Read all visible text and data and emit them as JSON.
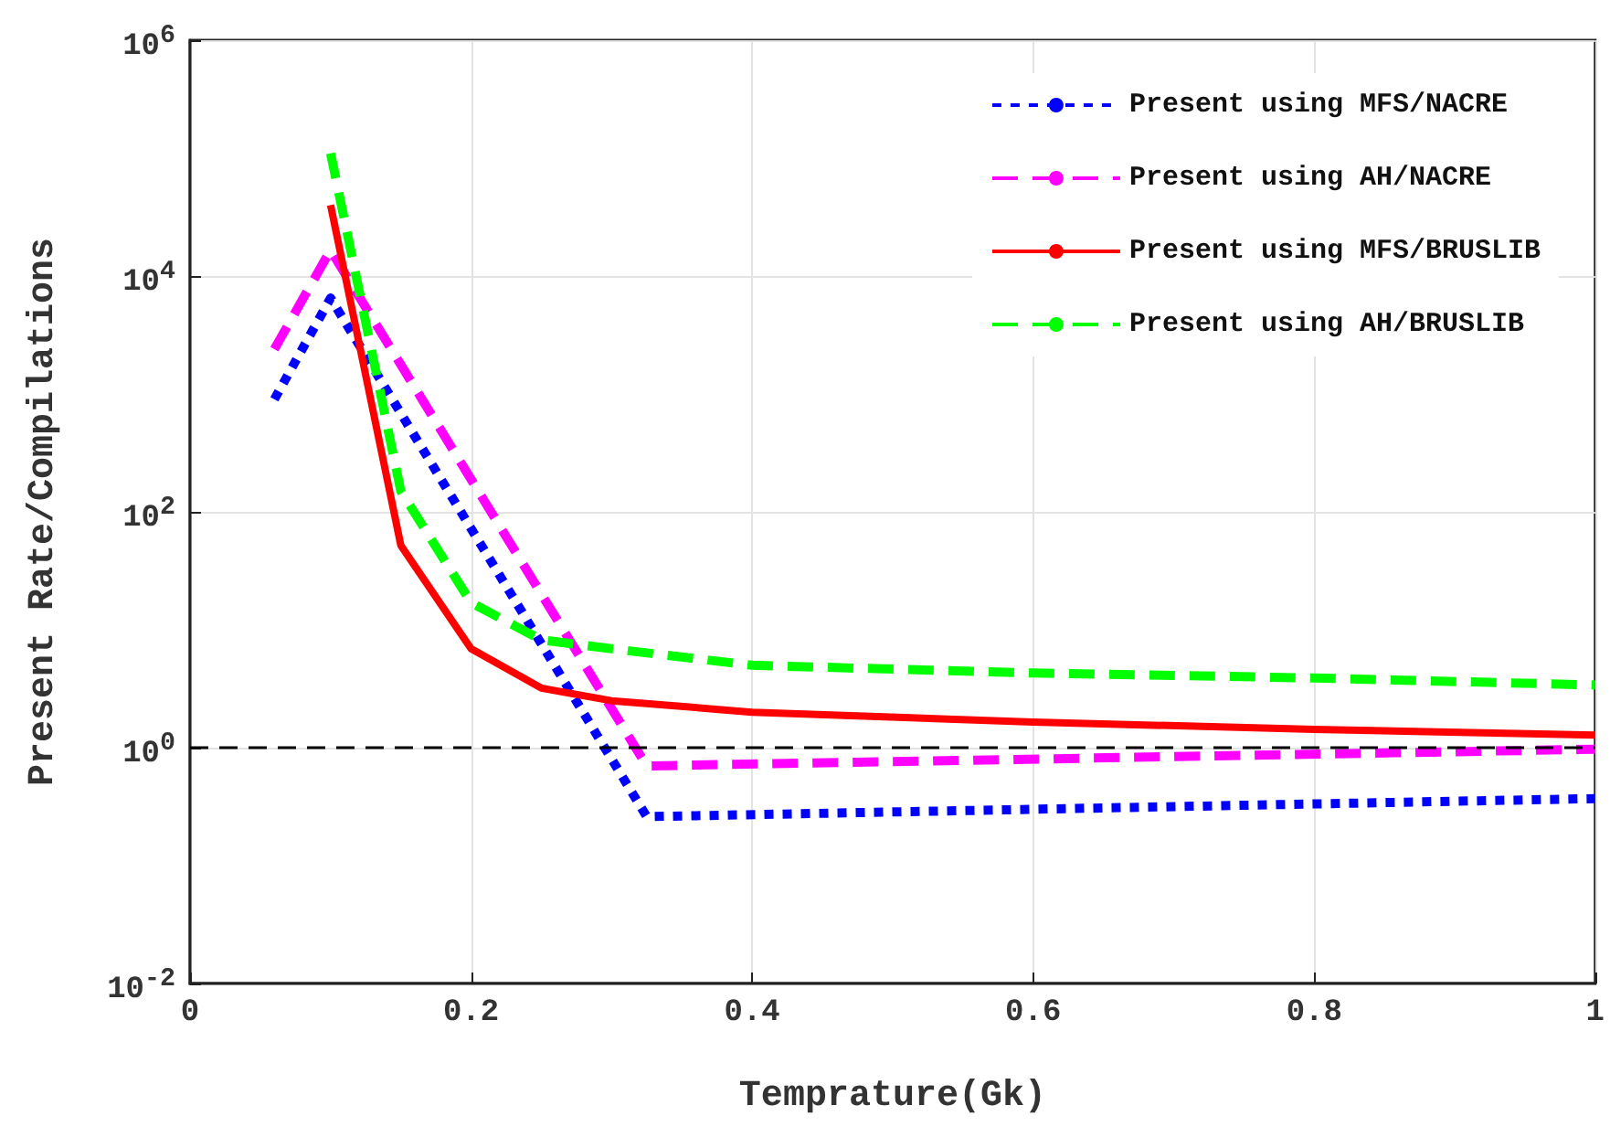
{
  "chart_data": {
    "type": "line",
    "xlabel": "Temprature(Gk)",
    "ylabel": "Present Rate/Compilations",
    "log": "y",
    "grid": true,
    "legend": "top right",
    "marker": "none",
    "xlim": [
      0,
      1
    ],
    "xticks": [
      0,
      0.2,
      0.4,
      0.6,
      0.8,
      1
    ],
    "ylim": [
      0.01,
      1000000
    ],
    "yticks": [
      {
        "value": 0.01,
        "label": "10$^{-2}$"
      },
      {
        "value": 1,
        "label": "10$^{0}$"
      },
      {
        "value": 100,
        "label": "10$^{2}$"
      },
      {
        "value": 10000,
        "label": "10$^{4}$"
      },
      {
        "value": 1000000,
        "label": "10$^{6}$"
      }
    ],
    "ref_lines": [
      {
        "axis": "y",
        "value": 1,
        "label": null,
        "color": "#000000",
        "line_style": "dashed"
      }
    ],
    "series": [
      {
        "name": "Present using MFS/NACRE",
        "color": "#0000ff",
        "line_style": "dotted",
        "x": [
          0.06,
          0.1,
          0.325,
          1
        ],
        "values": [
          900,
          6500,
          0.26,
          0.37
        ]
      },
      {
        "name": "Present using AH/NACRE",
        "color": "#ff00ff",
        "line_style": "dashed",
        "x": [
          0.06,
          0.1,
          0.325,
          1
        ],
        "values": [
          2400,
          16600,
          0.7,
          0.97
        ]
      },
      {
        "name": "Present using MFS/BRUSLIB",
        "color": "#ff0000",
        "line_style": "solid",
        "x": [
          0.1,
          0.15,
          0.2,
          0.25,
          0.3,
          0.4,
          0.6,
          0.8,
          1
        ],
        "values": [
          40000,
          52,
          6.9,
          3.2,
          2.5,
          2.0,
          1.65,
          1.43,
          1.28
        ]
      },
      {
        "name": "Present using AH/BRUSLIB",
        "color": "#00ff00",
        "line_style": "dashed",
        "x": [
          0.1,
          0.15,
          0.2,
          0.25,
          0.3,
          0.4,
          0.6,
          0.8,
          1
        ],
        "values": [
          110000,
          150,
          17,
          8.2,
          6.9,
          5,
          4.3,
          3.9,
          3.4
        ]
      }
    ]
  }
}
